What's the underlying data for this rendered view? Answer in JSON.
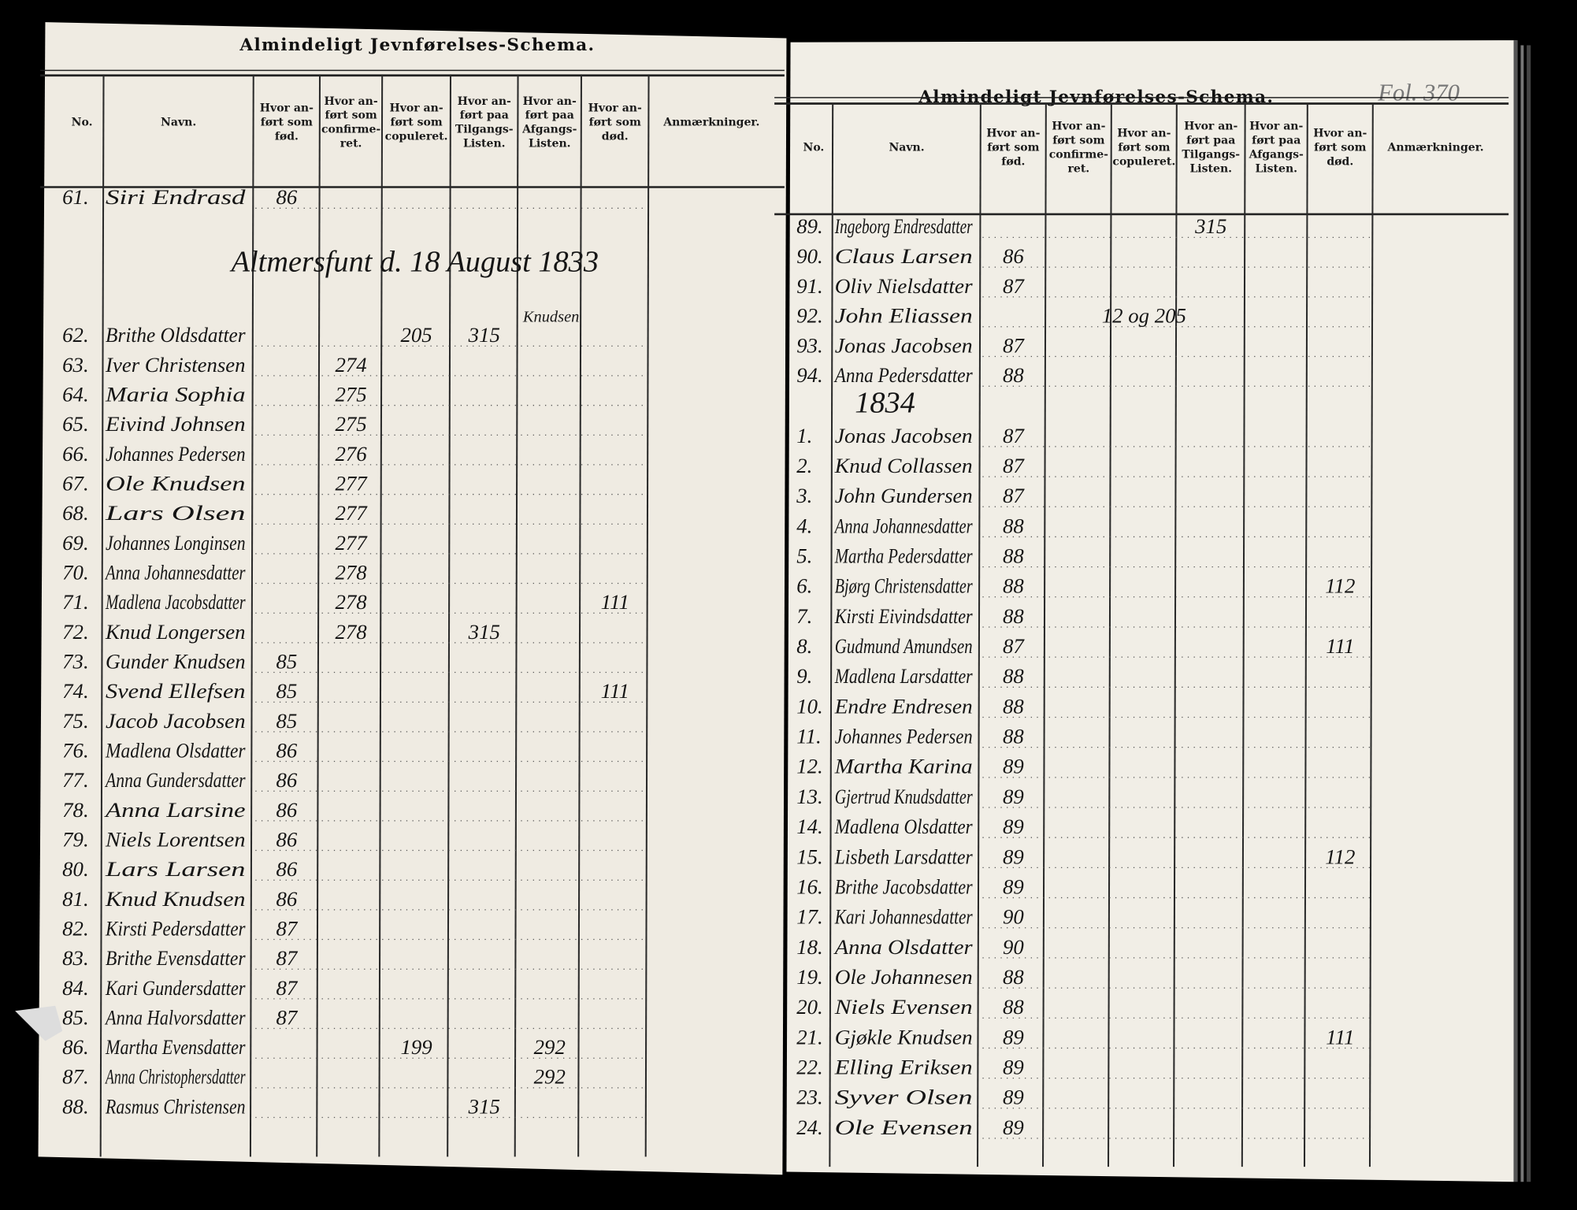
{
  "pages": [
    {
      "title": "Almindeligt Jevnførelses-Schema.",
      "columns": [
        [
          "No."
        ],
        [
          "Navn."
        ],
        [
          "Hvor an-",
          "ført som",
          "fød."
        ],
        [
          "Hvor an-",
          "ført som",
          "confirme-",
          "ret."
        ],
        [
          "Hvor an-",
          "ført som",
          "copuleret."
        ],
        [
          "Hvor an-",
          "ført paa",
          "Tilgangs-",
          "Listen."
        ],
        [
          "Hvor an-",
          "ført paa",
          "Afgangs-",
          "Listen."
        ],
        [
          "Hvor an-",
          "ført som",
          "død."
        ],
        [
          "Anmærkninger."
        ]
      ],
      "items": [
        {
          "no": "61.",
          "name": "Siri Endrasd",
          "cells": [
            86,
            null,
            null,
            null,
            null,
            null
          ]
        },
        {
          "note": "Altmersfunt d. 18 August 1833"
        },
        {
          "note": "Knudsen"
        },
        {
          "no": "62.",
          "name": "Brithe Oldsdatter",
          "cells": [
            null,
            null,
            205,
            315,
            null,
            null
          ]
        },
        {
          "no": "63.",
          "name": "Iver Christensen",
          "cells": [
            null,
            274,
            null,
            null,
            null,
            null
          ]
        },
        {
          "no": "64.",
          "name": "Maria Sophia",
          "cells": [
            null,
            275,
            null,
            null,
            null,
            null
          ]
        },
        {
          "no": "65.",
          "name": "Eivind Johnsen",
          "cells": [
            null,
            275,
            null,
            null,
            null,
            null
          ]
        },
        {
          "no": "66.",
          "name": "Johannes Pedersen",
          "cells": [
            null,
            276,
            null,
            null,
            null,
            null
          ]
        },
        {
          "no": "67.",
          "name": "Ole Knudsen",
          "cells": [
            null,
            277,
            null,
            null,
            null,
            null
          ]
        },
        {
          "no": "68.",
          "name": "Lars Olsen",
          "cells": [
            null,
            277,
            null,
            null,
            null,
            null
          ]
        },
        {
          "no": "69.",
          "name": "Johannes Longinsen",
          "cells": [
            null,
            277,
            null,
            null,
            null,
            null
          ]
        },
        {
          "no": "70.",
          "name": "Anna Johannesdatter",
          "cells": [
            null,
            278,
            null,
            null,
            null,
            null
          ]
        },
        {
          "no": "71.",
          "name": "Madlena Jacobsdatter",
          "cells": [
            null,
            278,
            null,
            null,
            null,
            111
          ]
        },
        {
          "no": "72.",
          "name": "Knud Longersen",
          "cells": [
            null,
            278,
            null,
            315,
            null,
            null
          ]
        },
        {
          "no": "73.",
          "name": "Gunder Knudsen",
          "cells": [
            85,
            null,
            null,
            null,
            null,
            null
          ]
        },
        {
          "no": "74.",
          "name": "Svend Ellefsen",
          "cells": [
            85,
            null,
            null,
            null,
            null,
            111
          ]
        },
        {
          "no": "75.",
          "name": "Jacob Jacobsen",
          "cells": [
            85,
            null,
            null,
            null,
            null,
            null
          ]
        },
        {
          "no": "76.",
          "name": "Madlena Olsdatter",
          "cells": [
            86,
            null,
            null,
            null,
            null,
            null
          ]
        },
        {
          "no": "77.",
          "name": "Anna Gundersdatter",
          "cells": [
            86,
            null,
            null,
            null,
            null,
            null
          ]
        },
        {
          "no": "78.",
          "name": "Anna Larsine",
          "cells": [
            86,
            null,
            null,
            null,
            null,
            null
          ]
        },
        {
          "no": "79.",
          "name": "Niels Lorentsen",
          "cells": [
            86,
            null,
            null,
            null,
            null,
            null
          ]
        },
        {
          "no": "80.",
          "name": "Lars Larsen",
          "cells": [
            86,
            null,
            null,
            null,
            null,
            null
          ]
        },
        {
          "no": "81.",
          "name": "Knud Knudsen",
          "cells": [
            86,
            null,
            null,
            null,
            null,
            null
          ]
        },
        {
          "no": "82.",
          "name": "Kirsti Pedersdatter",
          "cells": [
            87,
            null,
            null,
            null,
            null,
            null
          ]
        },
        {
          "no": "83.",
          "name": "Brithe Evensdatter",
          "cells": [
            87,
            null,
            null,
            null,
            null,
            null
          ]
        },
        {
          "no": "84.",
          "name": "Kari Gundersdatter",
          "cells": [
            87,
            null,
            null,
            null,
            null,
            null
          ]
        },
        {
          "no": "85.",
          "name": "Anna Halvorsdatter",
          "cells": [
            87,
            null,
            null,
            null,
            null,
            null
          ]
        },
        {
          "no": "86.",
          "name": "Martha Evensdatter",
          "cells": [
            null,
            null,
            199,
            null,
            292,
            null
          ]
        },
        {
          "no": "87.",
          "name": "Anna Christophersdatter",
          "cells": [
            null,
            null,
            null,
            null,
            292,
            null
          ]
        },
        {
          "no": "88.",
          "name": "Rasmus Christensen",
          "cells": [
            null,
            null,
            null,
            315,
            null,
            null
          ]
        }
      ]
    },
    {
      "title": "Almindeligt Jevnførelses-Schema.",
      "annotation": "Fol. 370",
      "columns": [
        [
          "No."
        ],
        [
          "Navn."
        ],
        [
          "Hvor an-",
          "ført som",
          "fød."
        ],
        [
          "Hvor an-",
          "ført som",
          "confirme-",
          "ret."
        ],
        [
          "Hvor an-",
          "ført som",
          "copuleret."
        ],
        [
          "Hvor an-",
          "ført paa",
          "Tilgangs-",
          "Listen."
        ],
        [
          "Hvor an-",
          "ført paa",
          "Afgangs-",
          "Listen."
        ],
        [
          "Hvor an-",
          "ført som",
          "død."
        ],
        [
          "Anmærkninger."
        ]
      ],
      "items": [
        {
          "no": "89.",
          "name": "Ingeborg Endresdatter",
          "cells": [
            null,
            null,
            null,
            315,
            null,
            null
          ]
        },
        {
          "no": "90.",
          "name": "Claus Larsen",
          "cells": [
            86,
            null,
            null,
            null,
            null,
            null
          ]
        },
        {
          "no": "91.",
          "name": "Oliv Nielsdatter",
          "cells": [
            87,
            null,
            null,
            null,
            null,
            null
          ]
        },
        {
          "no": "92.",
          "name": "John Eliassen",
          "cells": [
            null,
            null,
            "12 og 205",
            null,
            null,
            null
          ]
        },
        {
          "no": "93.",
          "name": "Jonas Jacobsen",
          "cells": [
            87,
            null,
            null,
            null,
            null,
            null
          ]
        },
        {
          "no": "94.",
          "name": "Anna Pedersdatter",
          "cells": [
            88,
            null,
            null,
            null,
            null,
            null
          ]
        },
        {
          "note": "1834"
        },
        {
          "no": "1.",
          "name": "Jonas Jacobsen",
          "cells": [
            87,
            null,
            null,
            null,
            null,
            null
          ]
        },
        {
          "no": "2.",
          "name": "Knud Collassen",
          "cells": [
            87,
            null,
            null,
            null,
            null,
            null
          ]
        },
        {
          "no": "3.",
          "name": "John Gundersen",
          "cells": [
            87,
            null,
            null,
            null,
            null,
            null
          ]
        },
        {
          "no": "4.",
          "name": "Anna Johannesdatter",
          "cells": [
            88,
            null,
            null,
            null,
            null,
            null
          ]
        },
        {
          "no": "5.",
          "name": "Martha Pedersdatter",
          "cells": [
            88,
            null,
            null,
            null,
            null,
            null
          ]
        },
        {
          "no": "6.",
          "name": "Bjørg Christensdatter",
          "cells": [
            88,
            null,
            null,
            null,
            null,
            112
          ]
        },
        {
          "no": "7.",
          "name": "Kirsti Eivindsdatter",
          "cells": [
            88,
            null,
            null,
            null,
            null,
            null
          ]
        },
        {
          "no": "8.",
          "name": "Gudmund Amundsen",
          "cells": [
            87,
            null,
            null,
            null,
            null,
            111
          ]
        },
        {
          "no": "9.",
          "name": "Madlena Larsdatter",
          "cells": [
            88,
            null,
            null,
            null,
            null,
            null
          ]
        },
        {
          "no": "10.",
          "name": "Endre Endresen",
          "cells": [
            88,
            null,
            null,
            null,
            null,
            null
          ]
        },
        {
          "no": "11.",
          "name": "Johannes Pedersen",
          "cells": [
            88,
            null,
            null,
            null,
            null,
            null
          ]
        },
        {
          "no": "12.",
          "name": "Martha Karina",
          "cells": [
            89,
            null,
            null,
            null,
            null,
            null
          ]
        },
        {
          "no": "13.",
          "name": "Gjertrud Knudsdatter",
          "cells": [
            89,
            null,
            null,
            null,
            null,
            null
          ]
        },
        {
          "no": "14.",
          "name": "Madlena Olsdatter",
          "cells": [
            89,
            null,
            null,
            null,
            null,
            null
          ]
        },
        {
          "no": "15.",
          "name": "Lisbeth Larsdatter",
          "cells": [
            89,
            null,
            null,
            null,
            null,
            112
          ]
        },
        {
          "no": "16.",
          "name": "Brithe Jacobsdatter",
          "cells": [
            89,
            null,
            null,
            null,
            null,
            null
          ]
        },
        {
          "no": "17.",
          "name": "Kari Johannesdatter",
          "cells": [
            90,
            null,
            null,
            null,
            null,
            null
          ]
        },
        {
          "no": "18.",
          "name": "Anna Olsdatter",
          "cells": [
            90,
            null,
            null,
            null,
            null,
            null
          ]
        },
        {
          "no": "19.",
          "name": "Ole Johannesen",
          "cells": [
            88,
            null,
            null,
            null,
            null,
            null
          ]
        },
        {
          "no": "20.",
          "name": "Niels Evensen",
          "cells": [
            88,
            null,
            null,
            null,
            null,
            null
          ]
        },
        {
          "no": "21.",
          "name": "Gjøkle Knudsen",
          "cells": [
            89,
            null,
            null,
            null,
            null,
            111
          ]
        },
        {
          "no": "22.",
          "name": "Elling Eriksen",
          "cells": [
            89,
            null,
            null,
            null,
            null,
            null
          ]
        },
        {
          "no": "23.",
          "name": "Syver Olsen",
          "cells": [
            89,
            null,
            null,
            null,
            null,
            null
          ]
        },
        {
          "no": "24.",
          "name": "Ole Evensen",
          "cells": [
            89,
            null,
            null,
            null,
            null,
            null
          ]
        }
      ]
    }
  ]
}
